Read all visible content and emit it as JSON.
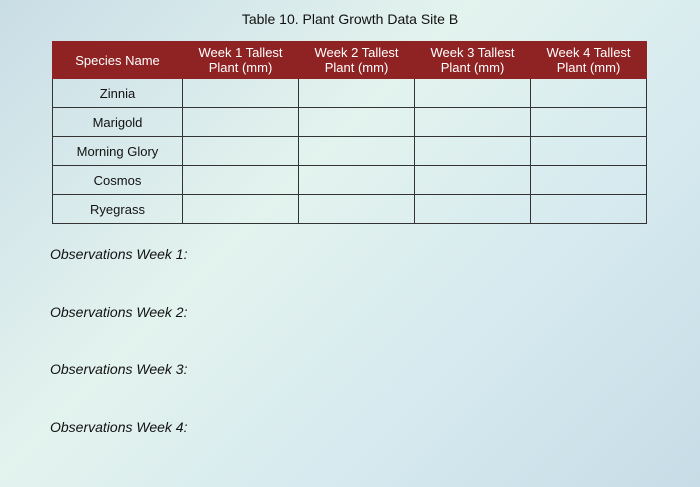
{
  "title": "Table 10. Plant Growth Data Site B",
  "table": {
    "header": [
      "Species Name",
      "Week 1 Tallest Plant (mm)",
      "Week 2 Tallest Plant (mm)",
      "Week 3 Tallest Plant (mm)",
      "Week 4 Tallest Plant (mm)"
    ],
    "rows": [
      [
        "Zinnia"
      ],
      [
        "Marigold"
      ],
      [
        "Morning Glory"
      ],
      [
        "Cosmos"
      ],
      [
        "Ryegrass"
      ]
    ]
  },
  "observations": [
    "Observations Week 1:",
    "Observations Week 2:",
    "Observations Week 3:",
    "Observations Week 4:"
  ]
}
